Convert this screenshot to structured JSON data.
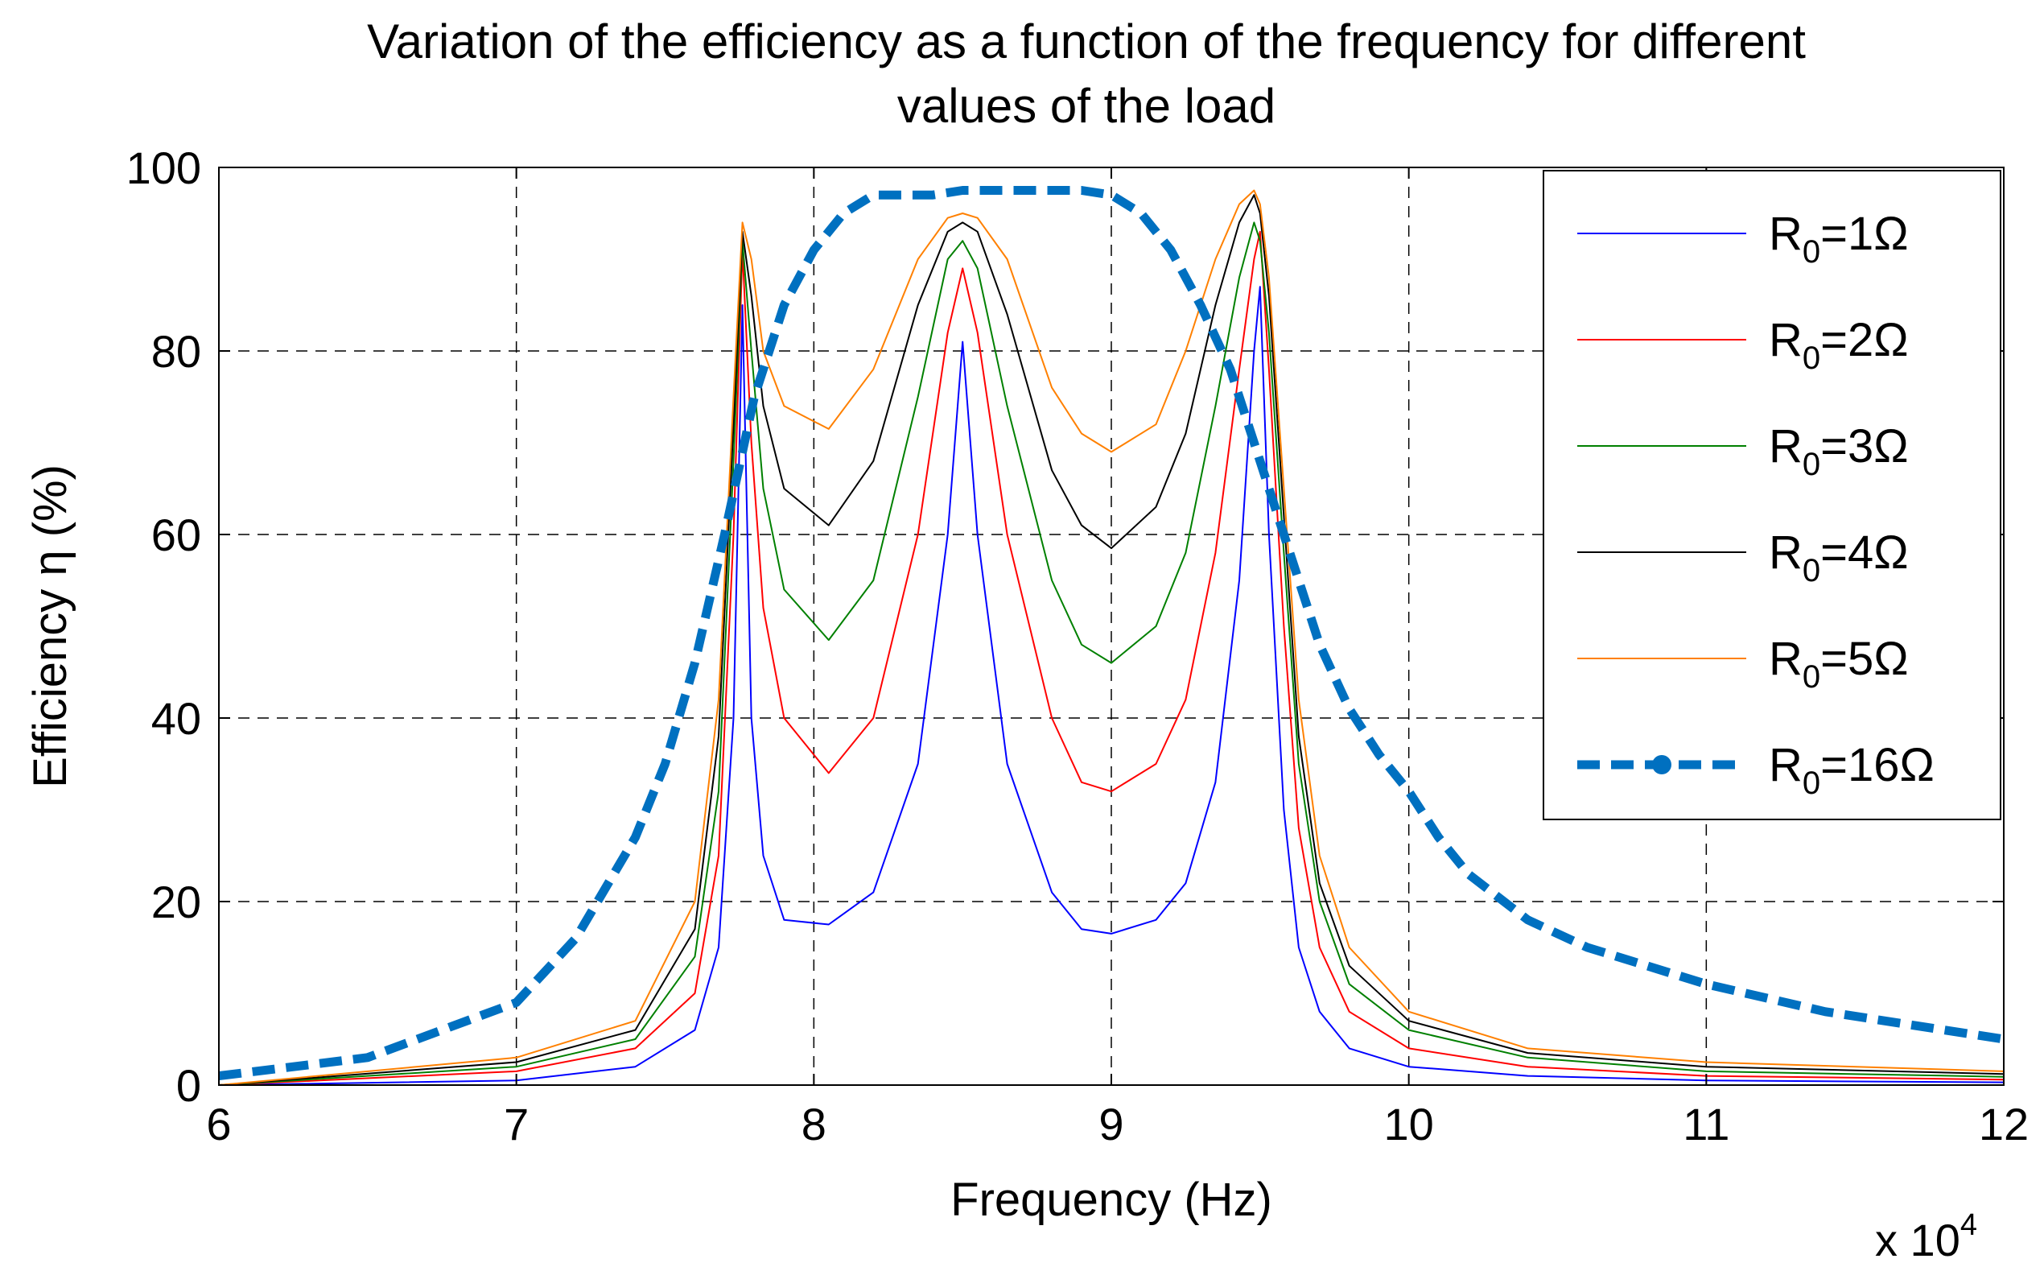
{
  "chart_data": {
    "type": "line",
    "title": "Variation of the efficiency as a function of the frequency for different values of the load",
    "title_lines": [
      "Variation of the efficiency as a function of the frequency for different",
      "values of the load"
    ],
    "xlabel": "Frequency (Hz)",
    "ylabel": "Efficiency η (%)",
    "x_multiplier_label": "x 10",
    "x_multiplier_exponent": "4",
    "xlim": [
      60000,
      120000
    ],
    "ylim": [
      0,
      100
    ],
    "grid": "dashed",
    "legend_position": "top-right",
    "x_ticks": [
      {
        "value": 60000,
        "label": "6"
      },
      {
        "value": 70000,
        "label": "7"
      },
      {
        "value": 80000,
        "label": "8"
      },
      {
        "value": 90000,
        "label": "9"
      },
      {
        "value": 100000,
        "label": "10"
      },
      {
        "value": 110000,
        "label": "11"
      },
      {
        "value": 120000,
        "label": "12"
      }
    ],
    "y_ticks": [
      {
        "value": 0,
        "label": "0"
      },
      {
        "value": 20,
        "label": "20"
      },
      {
        "value": 40,
        "label": "40"
      },
      {
        "value": 60,
        "label": "60"
      },
      {
        "value": 80,
        "label": "80"
      },
      {
        "value": 100,
        "label": "100"
      }
    ],
    "series": [
      {
        "name": "R0=1Ω",
        "label_main": "R",
        "label_sub": "0",
        "label_rest": "=1Ω",
        "color": "#0000ff",
        "style": "solid-thin",
        "x": [
          60000,
          70000,
          74000,
          76000,
          76800,
          77300,
          77600,
          77900,
          78300,
          79000,
          80500,
          82000,
          83500,
          84500,
          85000,
          85500,
          86500,
          88000,
          89000,
          90000,
          91500,
          92500,
          93500,
          94300,
          94800,
          95000,
          95300,
          95800,
          96300,
          97000,
          98000,
          100000,
          104000,
          110000,
          120000
        ],
        "values": [
          0,
          0.5,
          2,
          6,
          15,
          40,
          85,
          40,
          25,
          18,
          17.5,
          21,
          35,
          60,
          81,
          60,
          35,
          21,
          17,
          16.5,
          18,
          22,
          33,
          55,
          80,
          87,
          60,
          30,
          15,
          8,
          4,
          2,
          1,
          0.5,
          0.3
        ]
      },
      {
        "name": "R0=2Ω",
        "label_main": "R",
        "label_sub": "0",
        "label_rest": "=2Ω",
        "color": "#ff0000",
        "style": "solid-thin",
        "x": [
          60000,
          70000,
          74000,
          76000,
          76800,
          77300,
          77600,
          77900,
          78300,
          79000,
          80500,
          82000,
          83500,
          84500,
          85000,
          85500,
          86500,
          88000,
          89000,
          90000,
          91500,
          92500,
          93500,
          94300,
          94800,
          95000,
          95300,
          95800,
          96300,
          97000,
          98000,
          100000,
          104000,
          110000,
          120000
        ],
        "values": [
          0,
          1.5,
          4,
          10,
          25,
          60,
          91,
          70,
          52,
          40,
          34,
          40,
          60,
          82,
          89,
          82,
          60,
          40,
          33,
          32,
          35,
          42,
          58,
          78,
          90,
          93,
          78,
          50,
          28,
          15,
          8,
          4,
          2,
          1,
          0.6
        ]
      },
      {
        "name": "R0=3Ω",
        "label_main": "R",
        "label_sub": "0",
        "label_rest": "=3Ω",
        "color": "#008000",
        "style": "solid-thin",
        "x": [
          60000,
          70000,
          74000,
          76000,
          76800,
          77300,
          77600,
          77900,
          78300,
          79000,
          80500,
          82000,
          83500,
          84500,
          85000,
          85500,
          86500,
          88000,
          89000,
          90000,
          91500,
          92500,
          93500,
          94300,
          94800,
          95000,
          95300,
          95800,
          96300,
          97000,
          98000,
          100000,
          104000,
          110000,
          120000
        ],
        "values": [
          0,
          2,
          5,
          14,
          32,
          68,
          92,
          80,
          65,
          54,
          48.5,
          55,
          75,
          90,
          92,
          89,
          74,
          55,
          48,
          46,
          50,
          58,
          74,
          88,
          94,
          92,
          82,
          58,
          35,
          20,
          11,
          6,
          3,
          1.5,
          0.9
        ]
      },
      {
        "name": "R0=4Ω",
        "label_main": "R",
        "label_sub": "0",
        "label_rest": "=4Ω",
        "color": "#000000",
        "style": "solid-thin",
        "x": [
          60000,
          70000,
          74000,
          76000,
          76800,
          77300,
          77600,
          77900,
          78300,
          79000,
          80500,
          82000,
          83500,
          84500,
          85000,
          85500,
          86500,
          88000,
          89000,
          90000,
          91500,
          92500,
          93500,
          94300,
          94800,
          95000,
          95300,
          95800,
          96300,
          97000,
          98000,
          100000,
          104000,
          110000,
          120000
        ],
        "values": [
          0,
          2.5,
          6,
          17,
          38,
          72,
          93,
          86,
          74,
          65,
          61,
          68,
          85,
          93,
          94,
          93,
          84,
          67,
          61,
          58.5,
          63,
          71,
          85,
          94,
          97,
          95,
          86,
          62,
          38,
          22,
          13,
          7,
          3.5,
          2,
          1.2
        ]
      },
      {
        "name": "R0=5Ω",
        "label_main": "R",
        "label_sub": "0",
        "label_rest": "=5Ω",
        "color": "#ff8000",
        "style": "solid-thin",
        "x": [
          60000,
          70000,
          74000,
          76000,
          76800,
          77300,
          77600,
          77900,
          78300,
          79000,
          80500,
          82000,
          83500,
          84500,
          85000,
          85500,
          86500,
          88000,
          89000,
          90000,
          91500,
          92500,
          93500,
          94300,
          94800,
          95000,
          95300,
          95800,
          96300,
          97000,
          98000,
          100000,
          104000,
          110000,
          120000
        ],
        "values": [
          0,
          3,
          7,
          20,
          42,
          75,
          94,
          90,
          80,
          74,
          71.5,
          78,
          90,
          94.5,
          95,
          94.5,
          90,
          76,
          71,
          69,
          72,
          80,
          90,
          96,
          97.5,
          96,
          88,
          65,
          42,
          25,
          15,
          8,
          4,
          2.5,
          1.5
        ]
      },
      {
        "name": "R0=16Ω",
        "label_main": "R",
        "label_sub": "0",
        "label_rest": "=16Ω",
        "color": "#0070c0",
        "style": "dashed-thick",
        "x": [
          60000,
          65000,
          70000,
          72000,
          74000,
          75000,
          76000,
          77000,
          78000,
          79000,
          80000,
          81000,
          82000,
          83000,
          84000,
          85000,
          86000,
          87000,
          88000,
          89000,
          90000,
          91000,
          92000,
          93000,
          94000,
          95000,
          96000,
          97000,
          98000,
          99000,
          100000,
          101000,
          102000,
          104000,
          106000,
          108000,
          110000,
          114000,
          120000
        ],
        "values": [
          1,
          3,
          9,
          16,
          27,
          35,
          46,
          60,
          75,
          85,
          91,
          95,
          97,
          97,
          97,
          97.5,
          97.5,
          97.5,
          97.5,
          97.5,
          97,
          95,
          91,
          85,
          78,
          68,
          58,
          48,
          41,
          36,
          32,
          27,
          23,
          18,
          15,
          13,
          11,
          8,
          5
        ]
      }
    ]
  }
}
